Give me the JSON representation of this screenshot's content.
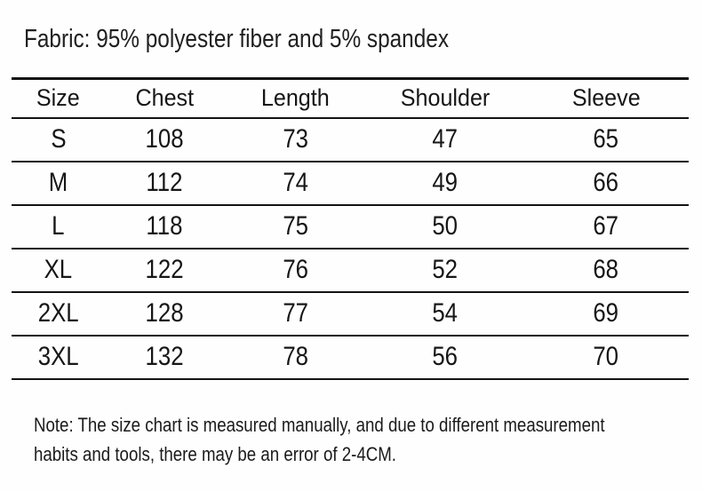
{
  "fabric_line": "Fabric: 95% polyester fiber and 5% spandex",
  "size_chart": {
    "columns": [
      "Size",
      "Chest",
      "Length",
      "Shoulder",
      "Sleeve"
    ],
    "rows": [
      [
        "S",
        "108",
        "73",
        "47",
        "65"
      ],
      [
        "M",
        "112",
        "74",
        "49",
        "66"
      ],
      [
        "L",
        "118",
        "75",
        "50",
        "67"
      ],
      [
        "XL",
        "122",
        "76",
        "52",
        "68"
      ],
      [
        "2XL",
        "128",
        "77",
        "54",
        "69"
      ],
      [
        "3XL",
        "132",
        "78",
        "56",
        "70"
      ]
    ]
  },
  "note": {
    "lines": [
      "Note: The size chart is measured manually, and due to different measurement",
      "habits and tools, there may be an error of 2-4CM."
    ]
  },
  "colors": {
    "background": "#fefefe",
    "text": "#1c1c1c",
    "rule": "#131313"
  }
}
